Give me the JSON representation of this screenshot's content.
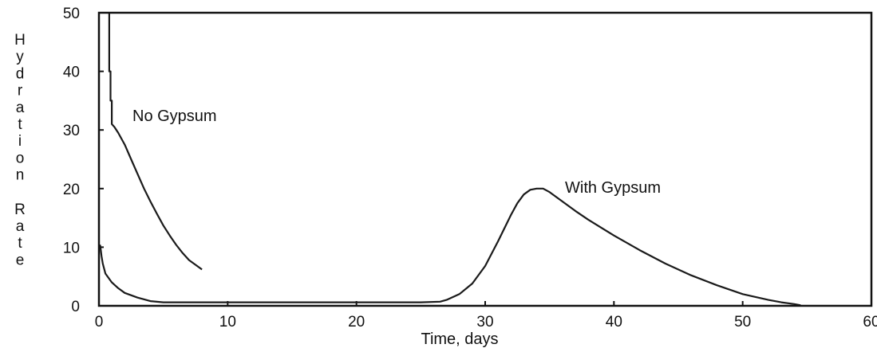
{
  "chart_data": {
    "type": "line",
    "title": "",
    "xlabel": "Time, days",
    "ylabel": "Hydration Rate",
    "xlim": [
      0,
      60
    ],
    "ylim": [
      0,
      50
    ],
    "x_ticks": [
      "0",
      "10",
      "20",
      "30",
      "40",
      "50",
      "60"
    ],
    "y_ticks": [
      "0",
      "10",
      "20",
      "30",
      "40",
      "50"
    ],
    "grid": false,
    "annotations": [
      "No Gypsum",
      "With Gypsum"
    ],
    "series": [
      {
        "name": "No Gypsum",
        "color": "#1a1a1a",
        "x": [
          0.8,
          0.8,
          0.9,
          0.9,
          1.0,
          1.0,
          1.2,
          1.5,
          2.0,
          2.5,
          3.0,
          3.5,
          4.0,
          4.5,
          5.0,
          5.5,
          6.0,
          6.5,
          7.0,
          7.5,
          8.0
        ],
        "y": [
          50,
          40,
          40,
          35,
          35,
          31,
          30.5,
          29.5,
          27.5,
          25.0,
          22.5,
          20.0,
          17.8,
          15.7,
          13.7,
          12.0,
          10.4,
          9.0,
          7.8,
          7.0,
          6.2
        ]
      },
      {
        "name": "With Gypsum",
        "color": "#1a1a1a",
        "x": [
          0,
          0.1,
          0.2,
          0.3,
          0.5,
          1,
          1.5,
          2,
          3,
          4,
          5,
          10,
          15,
          20,
          25,
          26.5,
          27,
          28,
          29,
          30,
          31,
          32,
          32.5,
          33,
          33.5,
          34,
          34.5,
          35,
          36,
          37,
          38,
          40,
          42,
          44,
          46,
          48,
          50,
          52,
          53,
          54,
          54.5
        ],
        "y": [
          10.3,
          10.3,
          8.5,
          7.2,
          5.5,
          4.0,
          3.0,
          2.2,
          1.4,
          0.8,
          0.6,
          0.6,
          0.6,
          0.6,
          0.6,
          0.7,
          1.0,
          2.0,
          3.8,
          6.8,
          11.0,
          15.5,
          17.5,
          19.0,
          19.8,
          20.0,
          20.0,
          19.4,
          17.8,
          16.2,
          14.7,
          12.0,
          9.5,
          7.2,
          5.2,
          3.5,
          2.0,
          1.0,
          0.6,
          0.3,
          0.1
        ]
      }
    ]
  }
}
